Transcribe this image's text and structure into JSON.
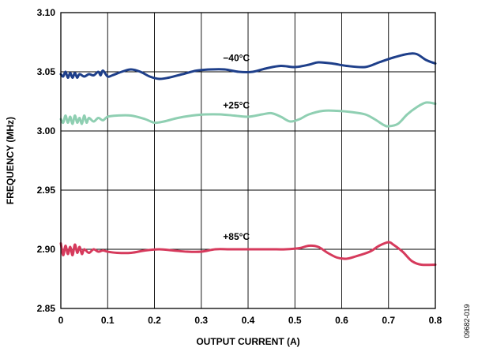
{
  "chart_data": {
    "type": "line",
    "title": "",
    "xlabel": "OUTPUT CURRENT (A)",
    "ylabel": "FREQUENCY (MHz)",
    "xlim": [
      0,
      0.8
    ],
    "ylim": [
      2.85,
      3.1
    ],
    "grid": true,
    "x_ticks": [
      "0",
      "0.1",
      "0.2",
      "0.3",
      "0.4",
      "0.5",
      "0.6",
      "0.7",
      "0.8"
    ],
    "y_ticks": [
      "2.85",
      "2.90",
      "2.95",
      "3.00",
      "3.05",
      "3.10"
    ],
    "figure_id": "09682-019",
    "series": [
      {
        "name": "−40°C",
        "color": "#1e3f8a",
        "points": [
          [
            0.0,
            3.048
          ],
          [
            0.005,
            3.046
          ],
          [
            0.01,
            3.05
          ],
          [
            0.015,
            3.045
          ],
          [
            0.02,
            3.049
          ],
          [
            0.025,
            3.045
          ],
          [
            0.03,
            3.049
          ],
          [
            0.035,
            3.045
          ],
          [
            0.04,
            3.048
          ],
          [
            0.05,
            3.046
          ],
          [
            0.06,
            3.048
          ],
          [
            0.07,
            3.047
          ],
          [
            0.08,
            3.05
          ],
          [
            0.085,
            3.047
          ],
          [
            0.09,
            3.051
          ],
          [
            0.1,
            3.046
          ],
          [
            0.11,
            3.047
          ],
          [
            0.13,
            3.05
          ],
          [
            0.15,
            3.052
          ],
          [
            0.17,
            3.05
          ],
          [
            0.19,
            3.046
          ],
          [
            0.21,
            3.044
          ],
          [
            0.23,
            3.045
          ],
          [
            0.26,
            3.048
          ],
          [
            0.29,
            3.051
          ],
          [
            0.32,
            3.052
          ],
          [
            0.35,
            3.052
          ],
          [
            0.38,
            3.05
          ],
          [
            0.41,
            3.05
          ],
          [
            0.44,
            3.053
          ],
          [
            0.47,
            3.055
          ],
          [
            0.5,
            3.054
          ],
          [
            0.53,
            3.056
          ],
          [
            0.55,
            3.058
          ],
          [
            0.58,
            3.057
          ],
          [
            0.61,
            3.055
          ],
          [
            0.65,
            3.054
          ],
          [
            0.68,
            3.058
          ],
          [
            0.71,
            3.062
          ],
          [
            0.74,
            3.065
          ],
          [
            0.76,
            3.065
          ],
          [
            0.78,
            3.06
          ],
          [
            0.8,
            3.057
          ]
        ]
      },
      {
        "name": "+25°C",
        "color": "#8fcfb2",
        "points": [
          [
            0.0,
            3.01
          ],
          [
            0.005,
            3.007
          ],
          [
            0.01,
            3.013
          ],
          [
            0.015,
            3.007
          ],
          [
            0.02,
            3.012
          ],
          [
            0.025,
            3.006
          ],
          [
            0.03,
            3.013
          ],
          [
            0.035,
            3.007
          ],
          [
            0.04,
            3.011
          ],
          [
            0.045,
            3.006
          ],
          [
            0.05,
            3.013
          ],
          [
            0.055,
            3.007
          ],
          [
            0.06,
            3.011
          ],
          [
            0.07,
            3.008
          ],
          [
            0.08,
            3.011
          ],
          [
            0.09,
            3.009
          ],
          [
            0.1,
            3.012
          ],
          [
            0.12,
            3.013
          ],
          [
            0.15,
            3.013
          ],
          [
            0.18,
            3.01
          ],
          [
            0.2,
            3.007
          ],
          [
            0.22,
            3.008
          ],
          [
            0.25,
            3.011
          ],
          [
            0.28,
            3.013
          ],
          [
            0.31,
            3.014
          ],
          [
            0.34,
            3.014
          ],
          [
            0.37,
            3.013
          ],
          [
            0.4,
            3.012
          ],
          [
            0.43,
            3.014
          ],
          [
            0.45,
            3.015
          ],
          [
            0.47,
            3.012
          ],
          [
            0.49,
            3.008
          ],
          [
            0.51,
            3.01
          ],
          [
            0.53,
            3.014
          ],
          [
            0.56,
            3.017
          ],
          [
            0.59,
            3.017
          ],
          [
            0.62,
            3.016
          ],
          [
            0.65,
            3.014
          ],
          [
            0.67,
            3.01
          ],
          [
            0.69,
            3.005
          ],
          [
            0.7,
            3.004
          ],
          [
            0.72,
            3.006
          ],
          [
            0.74,
            3.014
          ],
          [
            0.76,
            3.02
          ],
          [
            0.78,
            3.024
          ],
          [
            0.8,
            3.023
          ]
        ]
      },
      {
        "name": "+85°C",
        "color": "#d63a5c",
        "points": [
          [
            0.0,
            2.905
          ],
          [
            0.005,
            2.895
          ],
          [
            0.01,
            2.903
          ],
          [
            0.015,
            2.896
          ],
          [
            0.02,
            2.902
          ],
          [
            0.025,
            2.895
          ],
          [
            0.03,
            2.904
          ],
          [
            0.035,
            2.897
          ],
          [
            0.04,
            2.902
          ],
          [
            0.045,
            2.896
          ],
          [
            0.05,
            2.9
          ],
          [
            0.06,
            2.897
          ],
          [
            0.07,
            2.9
          ],
          [
            0.08,
            2.898
          ],
          [
            0.09,
            2.899
          ],
          [
            0.1,
            2.898
          ],
          [
            0.12,
            2.897
          ],
          [
            0.15,
            2.897
          ],
          [
            0.18,
            2.899
          ],
          [
            0.21,
            2.9
          ],
          [
            0.24,
            2.899
          ],
          [
            0.27,
            2.898
          ],
          [
            0.3,
            2.898
          ],
          [
            0.33,
            2.9
          ],
          [
            0.36,
            2.9
          ],
          [
            0.39,
            2.9
          ],
          [
            0.42,
            2.9
          ],
          [
            0.45,
            2.9
          ],
          [
            0.48,
            2.9
          ],
          [
            0.51,
            2.901
          ],
          [
            0.53,
            2.903
          ],
          [
            0.55,
            2.902
          ],
          [
            0.57,
            2.897
          ],
          [
            0.59,
            2.893
          ],
          [
            0.61,
            2.892
          ],
          [
            0.63,
            2.894
          ],
          [
            0.66,
            2.898
          ],
          [
            0.68,
            2.903
          ],
          [
            0.7,
            2.906
          ],
          [
            0.71,
            2.904
          ],
          [
            0.73,
            2.898
          ],
          [
            0.75,
            2.89
          ],
          [
            0.77,
            2.887
          ],
          [
            0.8,
            2.887
          ]
        ]
      }
    ],
    "annotations": [
      {
        "text": "−40°C",
        "x": 0.375,
        "y": 3.059,
        "series": 0
      },
      {
        "text": "+25°C",
        "x": 0.375,
        "y": 3.019,
        "series": 1
      },
      {
        "text": "+85°C",
        "x": 0.375,
        "y": 2.908,
        "series": 2
      }
    ]
  }
}
